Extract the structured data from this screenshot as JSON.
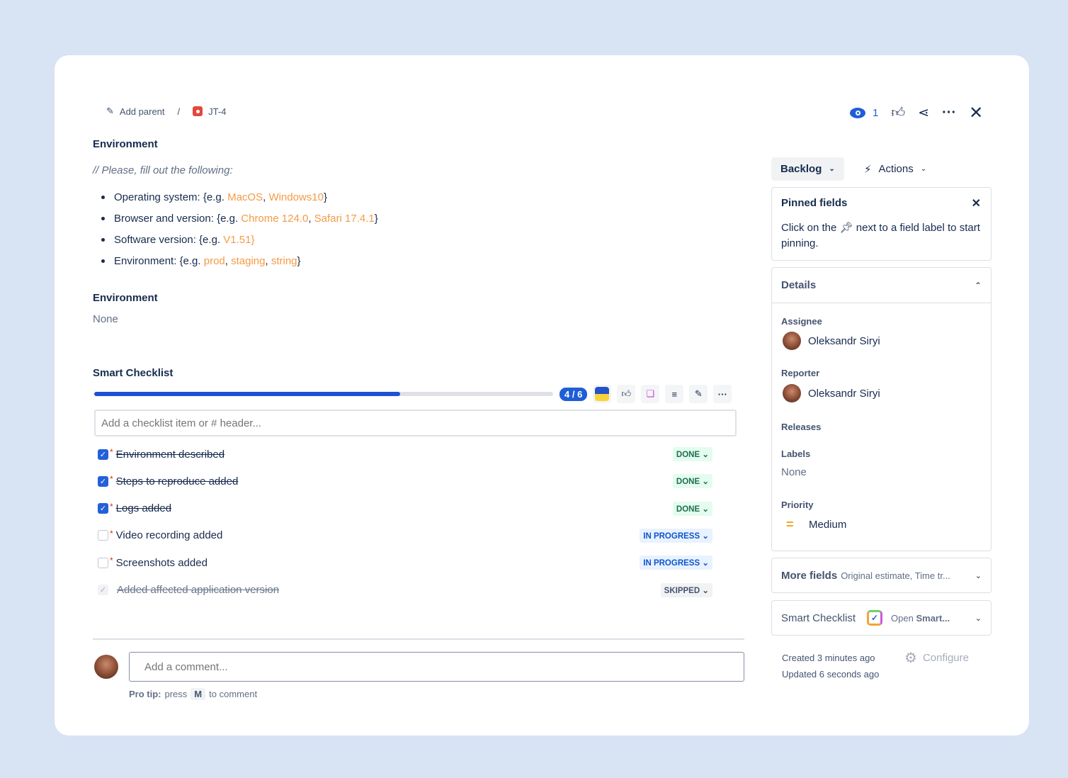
{
  "breadcrumb": {
    "add_parent": "Add parent",
    "separator": "/",
    "issue_key": "JT-4"
  },
  "top_actions": {
    "watch_count": "1"
  },
  "description": {
    "heading": "Environment",
    "comment": "// Please, fill out the following:",
    "items": [
      {
        "label": "Operating system: {e.g. ",
        "examples": [
          "MacOS",
          "Windows10"
        ],
        "end": "}"
      },
      {
        "label": "Browser and version: {e.g. ",
        "examples": [
          "Chrome 124.0",
          "Safari 17.4.1"
        ],
        "end": "}"
      },
      {
        "label": "Software version: {e.g. ",
        "examples": [
          "V1.51}"
        ],
        "end": ""
      },
      {
        "label": "Environment: {e.g. ",
        "examples": [
          "prod",
          "staging",
          "string"
        ],
        "end": "}"
      }
    ]
  },
  "environment": {
    "heading": "Environment",
    "value": "None"
  },
  "checklist": {
    "heading": "Smart Checklist",
    "progress_label": "4 / 6",
    "progress": 0.667,
    "placeholder": "Add a checklist item or # header...",
    "items": [
      {
        "text": "Environment described",
        "state": "checked",
        "status": "DONE"
      },
      {
        "text": "Steps to reproduce added",
        "state": "checked",
        "status": "DONE"
      },
      {
        "text": "Logs added",
        "state": "checked",
        "status": "DONE"
      },
      {
        "text": "Video recording added",
        "state": "unchecked",
        "status": "IN PROGRESS"
      },
      {
        "text": "Screenshots added",
        "state": "unchecked",
        "status": "IN PROGRESS"
      },
      {
        "text": "Added affected application version",
        "state": "skipped",
        "status": "SKIPPED"
      }
    ]
  },
  "comment": {
    "placeholder": "Add a comment...",
    "tip_bold": "Pro tip:",
    "tip_pre": "press",
    "tip_key": "M",
    "tip_post": "to comment"
  },
  "sidebar": {
    "status": "Backlog",
    "actions": "Actions",
    "pinned": {
      "title": "Pinned fields",
      "text_pre": "Click on the",
      "text_post": "next to a field label to start pinning."
    },
    "details": {
      "title": "Details",
      "assignee_label": "Assignee",
      "assignee": "Oleksandr Siryi",
      "reporter_label": "Reporter",
      "reporter": "Oleksandr Siryi",
      "releases_label": "Releases",
      "labels_label": "Labels",
      "labels": "None",
      "priority_label": "Priority",
      "priority": "Medium"
    },
    "more_fields": {
      "title": "More fields",
      "sub": "Original estimate, Time tr..."
    },
    "smart": {
      "title": "Smart Checklist",
      "open_pre": "Open",
      "open_bold": "Smart..."
    },
    "created": "Created 3 minutes ago",
    "updated": "Updated 6 seconds ago",
    "configure": "Configure"
  },
  "colors": {
    "accent": "#1f4fd6",
    "example": "#f59a45"
  }
}
